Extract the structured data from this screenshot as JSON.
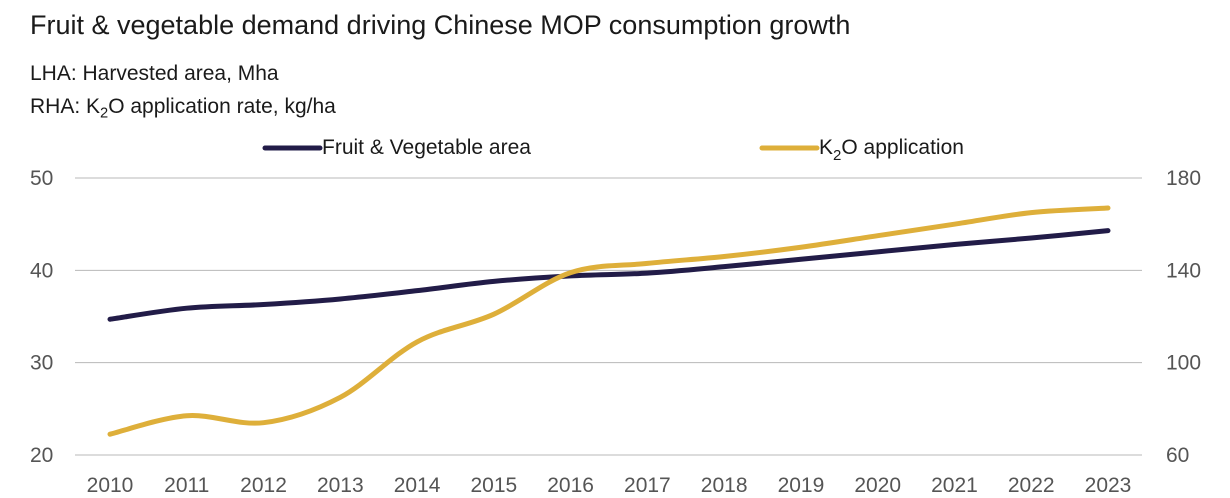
{
  "chart_data": {
    "type": "line",
    "title": "Fruit & vegetable demand driving Chinese MOP consumption growth",
    "subtitle_lha": "LHA: Harvested area, Mha",
    "subtitle_rha_pre": "RHA: K",
    "subtitle_rha_sub": "2",
    "subtitle_rha_post": "O application rate, kg/ha",
    "x": [
      "2010",
      "2011",
      "2012",
      "2013",
      "2014",
      "2015",
      "2016",
      "2017",
      "2018",
      "2019",
      "2020",
      "2021",
      "2022",
      "2023"
    ],
    "y_left": {
      "range": [
        20,
        50
      ],
      "ticks": [
        20,
        30,
        40,
        50
      ]
    },
    "y_right": {
      "range": [
        60,
        180
      ],
      "ticks": [
        60,
        100,
        140,
        180
      ]
    },
    "grid": true,
    "legend_position": "top",
    "series": [
      {
        "name": "Fruit & Vegetable area",
        "axis": "left",
        "color": "#221c48",
        "values": [
          34.7,
          35.9,
          36.3,
          36.9,
          37.8,
          38.8,
          39.4,
          39.7,
          40.4,
          41.2,
          42.0,
          42.8,
          43.5,
          44.3
        ]
      },
      {
        "name_pre": "K",
        "name_sub": "2",
        "name_post": "O application",
        "axis": "right",
        "color": "#deaf3a",
        "values": [
          69,
          77,
          74,
          85,
          109,
          121,
          139,
          143,
          146,
          150,
          155,
          160,
          165,
          167
        ]
      }
    ]
  }
}
